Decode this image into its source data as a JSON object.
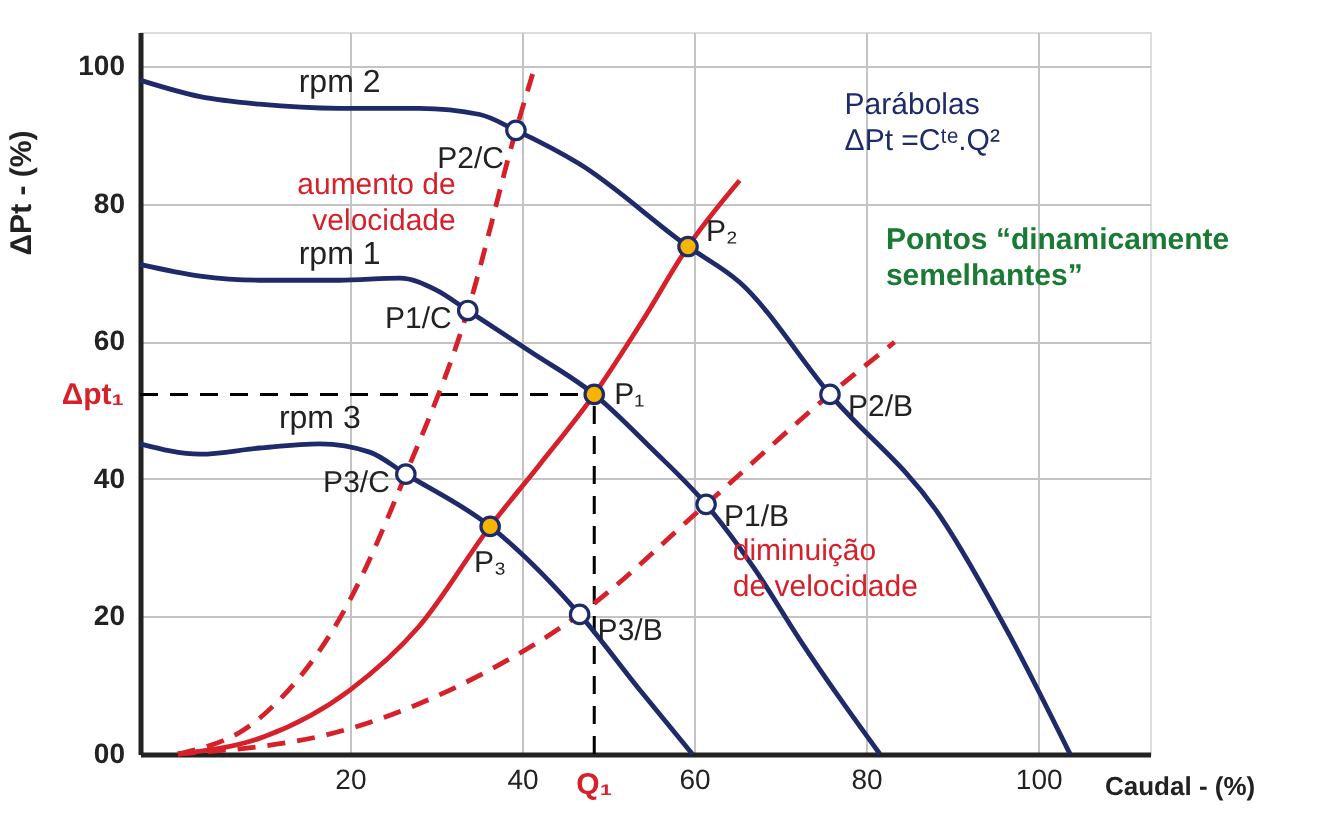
{
  "chart_data": {
    "type": "line",
    "xlabel": "Caudal - (%)",
    "ylabel": "ΔPt - (%)",
    "xlim": [
      -4.4,
      113
    ],
    "ylim": [
      0,
      105
    ],
    "xticks": [
      20,
      40,
      60,
      80,
      100
    ],
    "yticks": [
      {
        "value": 0,
        "label": "00"
      },
      20,
      40,
      60,
      80,
      100
    ],
    "grid": true,
    "series": [
      {
        "name": "rpm 2",
        "color": "#1f2a6b",
        "line_style": "solid",
        "x": [
          -4.4,
          2.6,
          9.5,
          18.8,
          28.1,
          35.1,
          39.3,
          46.7,
          59.3,
          65.3,
          75.8,
          88.6,
          96.7,
          103.7
        ],
        "values": [
          98.0,
          95.6,
          94.5,
          93.9,
          93.9,
          93.0,
          90.7,
          85.8,
          73.8,
          68.6,
          52.3,
          34.6,
          17.2,
          0
        ]
      },
      {
        "name": "rpm 1",
        "color": "#1f2a6b",
        "line_style": "solid",
        "x": [
          -4.4,
          2.6,
          9.5,
          18.8,
          25.8,
          30,
          33.7,
          41,
          48.4,
          55,
          61.4,
          67,
          72.3,
          77,
          81.6
        ],
        "values": [
          71.2,
          69.5,
          68.9,
          68.9,
          69.2,
          67.5,
          64.5,
          58.5,
          52.3,
          44.5,
          36.3,
          27,
          16.6,
          8,
          0
        ]
      },
      {
        "name": "rpm 3",
        "color": "#1f2a6b",
        "line_style": "solid",
        "x": [
          -4.4,
          2.6,
          9.5,
          16.5,
          22.3,
          26.5,
          36.3,
          46.7,
          53.7,
          59.8
        ],
        "values": [
          45.1,
          43.6,
          44.5,
          45.1,
          43.9,
          40.7,
          33.1,
          20.3,
          9.3,
          0
        ]
      },
      {
        "color": "#d6202a",
        "line_style": "solid",
        "x": [
          0,
          10,
          20,
          28,
          36.3,
          42,
          48.4,
          54,
          59.3,
          65.3
        ],
        "values": [
          0,
          2.5,
          9.3,
          18.5,
          33.1,
          42,
          52.3,
          63,
          73.8,
          83.4
        ]
      },
      {
        "color": "#d6202a",
        "line_style": "dashed",
        "x": [
          0,
          9.5,
          20,
          26.5,
          33.7,
          39.3,
          41.5
        ],
        "values": [
          0,
          5.2,
          22.4,
          40.7,
          64.5,
          90.7,
          100
        ]
      },
      {
        "color": "#d6202a",
        "line_style": "dashed",
        "x": [
          0,
          20,
          35,
          46.7,
          61.4,
          75.8,
          83.3
        ],
        "values": [
          0,
          3.7,
          11.4,
          20.3,
          36.3,
          52.3,
          59.9
        ]
      },
      {
        "type": "scatter",
        "color": "#ffffff",
        "marker": "circle",
        "x": [
          39.3,
          33.7,
          26.5,
          75.8,
          61.4,
          46.7
        ],
        "values": [
          90.7,
          64.5,
          40.7,
          52.3,
          36.3,
          20.3
        ]
      },
      {
        "type": "scatter",
        "color": "#f7b500",
        "marker": "circle",
        "x": [
          59.3,
          48.4,
          36.3
        ],
        "values": [
          73.8,
          52.3,
          33.1
        ]
      }
    ],
    "ref_lines": [
      {
        "axis": "y",
        "value": 52.3,
        "label": "Δpt₁",
        "color": "#000000",
        "line_style": "dashed"
      },
      {
        "axis": "x",
        "value": 48.4,
        "label": "Q₁",
        "color": "#000000",
        "line_style": "dashed"
      }
    ],
    "annotations": [
      {
        "text": "P2/C",
        "x": 39.3,
        "y": 90.7
      },
      {
        "text": "P1/C",
        "x": 33.7,
        "y": 64.5
      },
      {
        "text": "P3/C",
        "x": 26.5,
        "y": 40.7
      },
      {
        "text": "P2/B",
        "x": 75.8,
        "y": 52.3
      },
      {
        "text": "P1/B",
        "x": 61.4,
        "y": 36.3
      },
      {
        "text": "P3/B",
        "x": 46.7,
        "y": 20.3
      },
      {
        "text": "P₂",
        "x": 59.3,
        "y": 73.8
      },
      {
        "text": "P₁",
        "x": 48.4,
        "y": 52.3
      },
      {
        "text": "P₃",
        "x": 36.3,
        "y": 33.1
      },
      "aumento de\nvelocidade",
      "diminuição\nde velocidade",
      "Parábolas\nΔPt =Cᵗᵉ.Q²",
      "Pontos “dinamicamente\nsemelhantes”"
    ]
  }
}
